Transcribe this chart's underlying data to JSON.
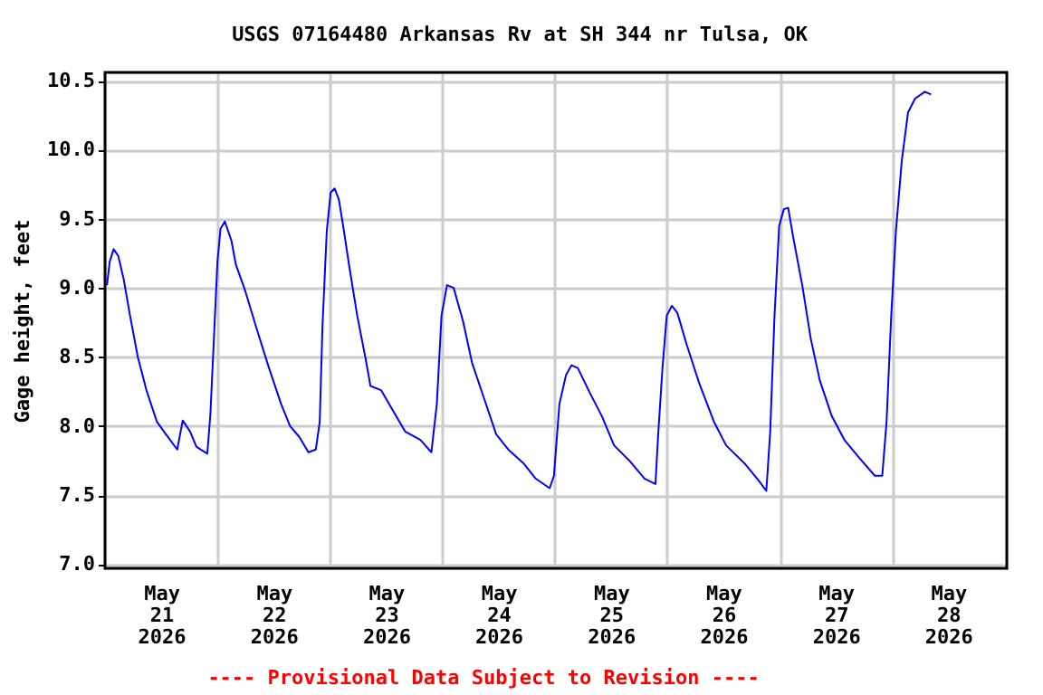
{
  "chart_data": {
    "type": "line",
    "title": "USGS 07164480 Arkansas Rv at SH 344 nr Tulsa, OK",
    "ylabel": "Gage height, feet",
    "annotations": [
      "---- Provisional Data Subject to Revision ----"
    ],
    "grid": true,
    "xlim": [
      "2026-05-21T00:00",
      "2026-05-29T00:30"
    ],
    "xticks": [
      {
        "value": "2026-05-21T12:00",
        "label": "May 21 2026"
      },
      {
        "value": "2026-05-22T00:00",
        "label": null
      },
      {
        "value": "2026-05-22T12:00",
        "label": "May 22 2026"
      },
      {
        "value": "2026-05-23T00:00",
        "label": null
      },
      {
        "value": "2026-05-23T12:00",
        "label": "May 23 2026"
      },
      {
        "value": "2026-05-24T00:00",
        "label": null
      },
      {
        "value": "2026-05-24T12:00",
        "label": "May 24 2026"
      },
      {
        "value": "2026-05-25T00:00",
        "label": null
      },
      {
        "value": "2026-05-25T12:00",
        "label": "May 25 2026"
      },
      {
        "value": "2026-05-26T00:00",
        "label": null
      },
      {
        "value": "2026-05-26T12:00",
        "label": "May 26 2026"
      },
      {
        "value": "2026-05-27T00:00",
        "label": null
      },
      {
        "value": "2026-05-27T12:00",
        "label": "May 27 2026"
      },
      {
        "value": "2026-05-28T00:00",
        "label": null
      },
      {
        "value": "2026-05-28T12:00",
        "label": "May 28 2026"
      }
    ],
    "ylim": [
      6.97,
      10.56
    ],
    "yticks": [
      {
        "value": 7.0,
        "label": "7.0"
      },
      {
        "value": 7.5,
        "label": "7.5"
      },
      {
        "value": 8.0,
        "label": "8.0"
      },
      {
        "value": 8.5,
        "label": "8.5"
      },
      {
        "value": 9.0,
        "label": "9.0"
      },
      {
        "value": 9.5,
        "label": "9.5"
      },
      {
        "value": 10.0,
        "label": "10.0"
      },
      {
        "value": 10.5,
        "label": "10.5"
      }
    ],
    "x": [
      "2026-05-21T00:25",
      "2026-05-21T01:00",
      "2026-05-21T01:50",
      "2026-05-21T02:50",
      "2026-05-21T04:00",
      "2026-05-21T05:20",
      "2026-05-21T07:00",
      "2026-05-21T08:50",
      "2026-05-21T11:05",
      "2026-05-21T13:00",
      "2026-05-21T15:25",
      "2026-05-21T16:35",
      "2026-05-21T18:10",
      "2026-05-21T19:30",
      "2026-05-21T21:50",
      "2026-05-21T22:30",
      "2026-05-21T23:25",
      "2026-05-22T00:00",
      "2026-05-22T00:40",
      "2026-05-22T01:35",
      "2026-05-22T03:00",
      "2026-05-22T03:55",
      "2026-05-22T05:55",
      "2026-05-22T08:25",
      "2026-05-22T11:00",
      "2026-05-22T13:35",
      "2026-05-22T15:30",
      "2026-05-22T17:30",
      "2026-05-22T19:25",
      "2026-05-22T21:00",
      "2026-05-22T21:50",
      "2026-05-22T22:25",
      "2026-05-22T23:20",
      "2026-05-23T00:10",
      "2026-05-23T01:00",
      "2026-05-23T01:55",
      "2026-05-23T02:55",
      "2026-05-23T04:10",
      "2026-05-23T05:50",
      "2026-05-23T07:40",
      "2026-05-23T08:40",
      "2026-05-23T10:55",
      "2026-05-23T13:30",
      "2026-05-23T16:05",
      "2026-05-23T19:20",
      "2026-05-23T21:40",
      "2026-05-23T22:50",
      "2026-05-23T23:50",
      "2026-05-24T01:00",
      "2026-05-24T02:25",
      "2026-05-24T04:25",
      "2026-05-24T06:20",
      "2026-05-24T08:55",
      "2026-05-24T11:30",
      "2026-05-24T14:05",
      "2026-05-24T17:20",
      "2026-05-24T19:55",
      "2026-05-24T22:55",
      "2026-05-24T23:50",
      "2026-05-25T01:00",
      "2026-05-25T02:25",
      "2026-05-25T03:35",
      "2026-05-25T04:55",
      "2026-05-25T07:30",
      "2026-05-25T10:05",
      "2026-05-25T12:40",
      "2026-05-25T15:55",
      "2026-05-25T19:10",
      "2026-05-25T21:30",
      "2026-05-25T22:05",
      "2026-05-25T23:00",
      "2026-05-25T23:55",
      "2026-05-26T01:00",
      "2026-05-26T02:10",
      "2026-05-26T04:10",
      "2026-05-26T06:50",
      "2026-05-26T10:00",
      "2026-05-26T12:35",
      "2026-05-26T16:30",
      "2026-05-26T19:40",
      "2026-05-26T21:10",
      "2026-05-26T22:00",
      "2026-05-26T22:55",
      "2026-05-26T23:55",
      "2026-05-27T00:55",
      "2026-05-27T01:50",
      "2026-05-27T02:50",
      "2026-05-27T04:50",
      "2026-05-27T06:40",
      "2026-05-27T08:35",
      "2026-05-27T11:10",
      "2026-05-27T13:50",
      "2026-05-27T17:00",
      "2026-05-27T20:20",
      "2026-05-27T21:55",
      "2026-05-27T22:50",
      "2026-05-27T23:50",
      "2026-05-28T00:50",
      "2026-05-28T02:05",
      "2026-05-28T03:25",
      "2026-05-28T04:55",
      "2026-05-28T07:00",
      "2026-05-28T08:20"
    ],
    "series": [
      {
        "color": "#0000ff",
        "values": [
          9.02,
          9.19,
          9.28,
          9.23,
          9.06,
          8.8,
          8.5,
          8.26,
          8.03,
          7.94,
          7.83,
          8.04,
          7.96,
          7.85,
          7.8,
          8.09,
          8.76,
          9.19,
          9.43,
          9.48,
          9.34,
          9.17,
          8.98,
          8.7,
          8.42,
          8.16,
          8.0,
          7.92,
          7.81,
          7.83,
          8.03,
          8.72,
          9.41,
          9.69,
          9.72,
          9.64,
          9.43,
          9.15,
          8.8,
          8.48,
          8.29,
          8.26,
          8.11,
          7.96,
          7.9,
          7.81,
          8.16,
          8.8,
          9.02,
          9.0,
          8.76,
          8.46,
          8.2,
          7.94,
          7.83,
          7.73,
          7.62,
          7.55,
          7.64,
          8.16,
          8.37,
          8.44,
          8.42,
          8.24,
          8.07,
          7.86,
          7.75,
          7.62,
          7.58,
          7.94,
          8.42,
          8.8,
          8.87,
          8.82,
          8.59,
          8.31,
          8.03,
          7.86,
          7.73,
          7.6,
          7.53,
          7.96,
          8.8,
          9.45,
          9.57,
          9.58,
          9.38,
          9.02,
          8.63,
          8.33,
          8.07,
          7.9,
          7.77,
          7.64,
          7.64,
          8.03,
          8.8,
          9.41,
          9.92,
          10.27,
          10.37,
          10.42,
          10.4
        ]
      }
    ]
  }
}
